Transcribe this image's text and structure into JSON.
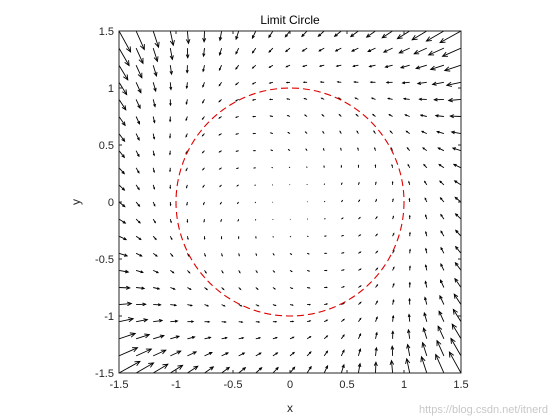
{
  "chart_data": {
    "type": "quiver",
    "title": "Limit Circle",
    "xlabel": "x",
    "ylabel": "y",
    "xlim": [
      -1.5,
      1.5
    ],
    "ylim": [
      -1.5,
      1.5
    ],
    "xticks": [
      "-1.5",
      "-1",
      "-0.5",
      "0",
      "0.5",
      "1",
      "1.5"
    ],
    "yticks": [
      "-1.5",
      "-1",
      "-0.5",
      "0",
      "0.5",
      "1",
      "1.5"
    ],
    "grid": false,
    "vector_field": {
      "equation_u": "-y - x*(x^2+y^2-1)",
      "equation_v": "x - y*(x^2+y^2-1)",
      "grid_start": -1.5,
      "grid_step": 0.15,
      "grid_count": 21,
      "arrow_color": "#000000"
    },
    "limit_cycle": {
      "radius": 1,
      "center": [
        0,
        0
      ],
      "color": "#e00000",
      "style": "dashed"
    }
  },
  "watermark": "https://blog.csdn.net/itnerd"
}
